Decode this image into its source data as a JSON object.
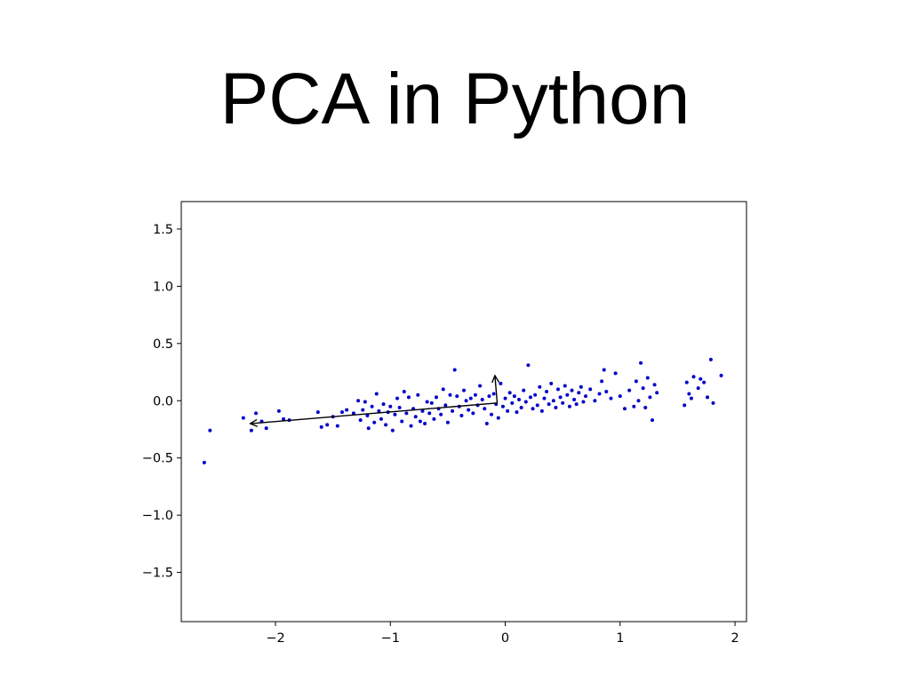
{
  "slide": {
    "title": "PCA in Python"
  },
  "colors": {
    "points": "#0000cc",
    "axes": "#000000",
    "arrows": "#000000",
    "background": "#ffffff"
  },
  "chart_data": {
    "type": "scatter",
    "title": "",
    "xlabel": "",
    "ylabel": "",
    "xlim": [
      -2.82,
      2.1
    ],
    "ylim": [
      -1.93,
      1.74
    ],
    "xticks": [
      -2,
      -1,
      0,
      1,
      2
    ],
    "yticks": [
      1.5,
      1.0,
      0.5,
      0.0,
      -0.5,
      -1.0,
      -1.5
    ],
    "xtick_labels": [
      "−2",
      "−1",
      "0",
      "1",
      "2"
    ],
    "ytick_labels": [
      "1.5",
      "1.0",
      "0.5",
      "0.0",
      "−0.5",
      "−1.0",
      "−1.5"
    ],
    "grid": false,
    "legend": "none",
    "points": [
      [
        -2.62,
        -0.54
      ],
      [
        -2.57,
        -0.26
      ],
      [
        -2.28,
        -0.15
      ],
      [
        -2.21,
        -0.26
      ],
      [
        -2.17,
        -0.11
      ],
      [
        -2.12,
        -0.18
      ],
      [
        -2.08,
        -0.24
      ],
      [
        -1.97,
        -0.09
      ],
      [
        -1.93,
        -0.16
      ],
      [
        -1.88,
        -0.17
      ],
      [
        -1.63,
        -0.1
      ],
      [
        -1.6,
        -0.23
      ],
      [
        -1.55,
        -0.21
      ],
      [
        -1.5,
        -0.14
      ],
      [
        -1.46,
        -0.22
      ],
      [
        -1.42,
        -0.1
      ],
      [
        -1.38,
        -0.08
      ],
      [
        -1.32,
        -0.11
      ],
      [
        -1.28,
        0.0
      ],
      [
        -1.26,
        -0.17
      ],
      [
        -1.24,
        -0.08
      ],
      [
        -1.22,
        -0.01
      ],
      [
        -1.2,
        -0.13
      ],
      [
        -1.19,
        -0.24
      ],
      [
        -1.16,
        -0.05
      ],
      [
        -1.14,
        -0.19
      ],
      [
        -1.12,
        0.06
      ],
      [
        -1.1,
        -0.09
      ],
      [
        -1.08,
        -0.16
      ],
      [
        -1.06,
        -0.03
      ],
      [
        -1.04,
        -0.21
      ],
      [
        -1.02,
        -0.1
      ],
      [
        -1.0,
        -0.05
      ],
      [
        -0.98,
        -0.26
      ],
      [
        -0.96,
        -0.12
      ],
      [
        -0.94,
        0.02
      ],
      [
        -0.92,
        -0.06
      ],
      [
        -0.9,
        -0.18
      ],
      [
        -0.88,
        0.08
      ],
      [
        -0.86,
        -0.11
      ],
      [
        -0.84,
        0.03
      ],
      [
        -0.82,
        -0.22
      ],
      [
        -0.8,
        -0.07
      ],
      [
        -0.78,
        -0.14
      ],
      [
        -0.76,
        0.05
      ],
      [
        -0.74,
        -0.18
      ],
      [
        -0.72,
        -0.09
      ],
      [
        -0.7,
        -0.2
      ],
      [
        -0.68,
        -0.01
      ],
      [
        -0.66,
        -0.11
      ],
      [
        -0.64,
        -0.02
      ],
      [
        -0.62,
        -0.16
      ],
      [
        -0.6,
        0.03
      ],
      [
        -0.58,
        -0.07
      ],
      [
        -0.56,
        -0.12
      ],
      [
        -0.54,
        0.1
      ],
      [
        -0.52,
        -0.04
      ],
      [
        -0.5,
        -0.19
      ],
      [
        -0.48,
        0.05
      ],
      [
        -0.46,
        -0.09
      ],
      [
        -0.44,
        0.27
      ],
      [
        -0.42,
        0.04
      ],
      [
        -0.4,
        -0.05
      ],
      [
        -0.38,
        -0.13
      ],
      [
        -0.36,
        0.09
      ],
      [
        -0.34,
        0.0
      ],
      [
        -0.32,
        -0.08
      ],
      [
        -0.3,
        0.02
      ],
      [
        -0.28,
        -0.11
      ],
      [
        -0.26,
        0.05
      ],
      [
        -0.24,
        -0.04
      ],
      [
        -0.22,
        0.13
      ],
      [
        -0.2,
        0.01
      ],
      [
        -0.18,
        -0.07
      ],
      [
        -0.16,
        -0.2
      ],
      [
        -0.14,
        0.04
      ],
      [
        -0.12,
        -0.12
      ],
      [
        -0.1,
        0.06
      ],
      [
        -0.08,
        -0.03
      ],
      [
        -0.06,
        -0.15
      ],
      [
        -0.04,
        0.15
      ],
      [
        -0.02,
        -0.05
      ],
      [
        0.0,
        0.02
      ],
      [
        0.02,
        -0.09
      ],
      [
        0.04,
        0.07
      ],
      [
        0.06,
        -0.02
      ],
      [
        0.08,
        0.04
      ],
      [
        0.1,
        -0.1
      ],
      [
        0.12,
        0.01
      ],
      [
        0.14,
        -0.06
      ],
      [
        0.16,
        0.09
      ],
      [
        0.18,
        -0.01
      ],
      [
        0.2,
        0.31
      ],
      [
        0.22,
        0.03
      ],
      [
        0.24,
        -0.07
      ],
      [
        0.26,
        0.05
      ],
      [
        0.28,
        -0.04
      ],
      [
        0.3,
        0.12
      ],
      [
        0.32,
        -0.09
      ],
      [
        0.34,
        0.02
      ],
      [
        0.36,
        0.08
      ],
      [
        0.38,
        -0.03
      ],
      [
        0.4,
        0.15
      ],
      [
        0.42,
        0.0
      ],
      [
        0.44,
        -0.06
      ],
      [
        0.46,
        0.1
      ],
      [
        0.48,
        0.03
      ],
      [
        0.5,
        -0.02
      ],
      [
        0.52,
        0.13
      ],
      [
        0.54,
        0.05
      ],
      [
        0.56,
        -0.05
      ],
      [
        0.58,
        0.09
      ],
      [
        0.6,
        0.01
      ],
      [
        0.62,
        -0.03
      ],
      [
        0.64,
        0.07
      ],
      [
        0.66,
        0.12
      ],
      [
        0.68,
        -0.01
      ],
      [
        0.7,
        0.04
      ],
      [
        0.74,
        0.1
      ],
      [
        0.78,
        0.0
      ],
      [
        0.82,
        0.06
      ],
      [
        0.84,
        0.17
      ],
      [
        0.86,
        0.27
      ],
      [
        0.88,
        0.08
      ],
      [
        0.92,
        0.02
      ],
      [
        0.96,
        0.24
      ],
      [
        1.0,
        0.04
      ],
      [
        1.04,
        -0.07
      ],
      [
        1.08,
        0.09
      ],
      [
        1.12,
        -0.05
      ],
      [
        1.14,
        0.17
      ],
      [
        1.16,
        0.0
      ],
      [
        1.18,
        0.33
      ],
      [
        1.2,
        0.11
      ],
      [
        1.22,
        -0.06
      ],
      [
        1.24,
        0.2
      ],
      [
        1.26,
        0.03
      ],
      [
        1.28,
        -0.17
      ],
      [
        1.3,
        0.14
      ],
      [
        1.32,
        0.07
      ],
      [
        1.56,
        -0.04
      ],
      [
        1.58,
        0.16
      ],
      [
        1.6,
        0.06
      ],
      [
        1.62,
        0.02
      ],
      [
        1.64,
        0.21
      ],
      [
        1.68,
        0.11
      ],
      [
        1.7,
        0.19
      ],
      [
        1.73,
        0.16
      ],
      [
        1.76,
        0.03
      ],
      [
        1.79,
        0.36
      ],
      [
        1.81,
        -0.02
      ],
      [
        1.88,
        0.22
      ]
    ],
    "vectors": [
      {
        "from": [
          -0.07,
          -0.02
        ],
        "to": [
          -2.22,
          -0.2
        ]
      },
      {
        "from": [
          -0.07,
          -0.02
        ],
        "to": [
          -0.09,
          0.22
        ]
      }
    ]
  }
}
